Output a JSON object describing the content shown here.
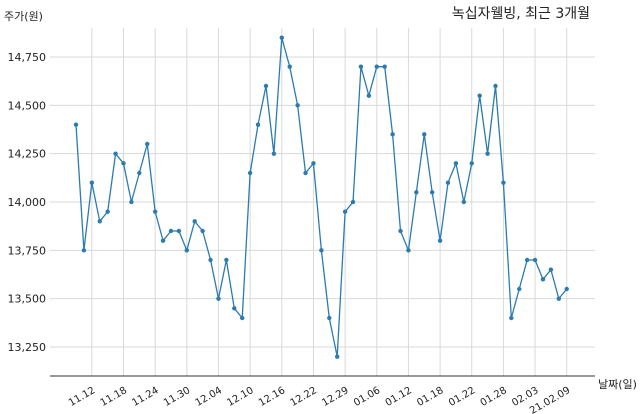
{
  "chart_data": {
    "type": "line",
    "title": "녹십자웰빙, 최근 3개월",
    "ylabel": "주가(원)",
    "xlabel": "날짜(일)",
    "ylim": [
      13100,
      14900
    ],
    "yticks": [
      13250,
      13500,
      13750,
      14000,
      14250,
      14500,
      14750
    ],
    "ytick_labels": [
      "13,250",
      "13,500",
      "13,750",
      "14,000",
      "14,250",
      "14,500",
      "14,750"
    ],
    "xtick_labels": [
      "11.12",
      "11.18",
      "11.24",
      "11.30",
      "12.04",
      "12.10",
      "12.16",
      "12.22",
      "12.29",
      "01.06",
      "01.12",
      "01.18",
      "01.22",
      "01.28",
      "02.03",
      "21.02.09"
    ],
    "xtick_index": [
      2,
      6,
      10,
      14,
      18,
      22,
      26,
      30,
      34,
      38,
      42,
      46,
      50,
      54,
      58,
      62
    ],
    "grid": true,
    "line_color": "#2b7bb0",
    "series": [
      {
        "values": [
          14400,
          13750,
          14100,
          13900,
          13950,
          14250,
          14200,
          14000,
          14150,
          14300,
          13950,
          13800,
          13850,
          13850,
          13750,
          13900,
          13850,
          13700,
          13500,
          13700,
          13450,
          13400,
          14150,
          14400,
          14600,
          14250,
          14850,
          14700,
          14500,
          14150,
          14200,
          13750,
          13400,
          13200,
          13950,
          14000,
          14700,
          14550,
          14700,
          14700,
          14350,
          13850,
          13750,
          14050,
          14350,
          14050,
          13800,
          14100,
          14200,
          14000,
          14200,
          14550,
          14250,
          14600,
          14100,
          13400,
          13550,
          13700,
          13700,
          13600,
          13650,
          13500,
          13550
        ]
      }
    ]
  }
}
